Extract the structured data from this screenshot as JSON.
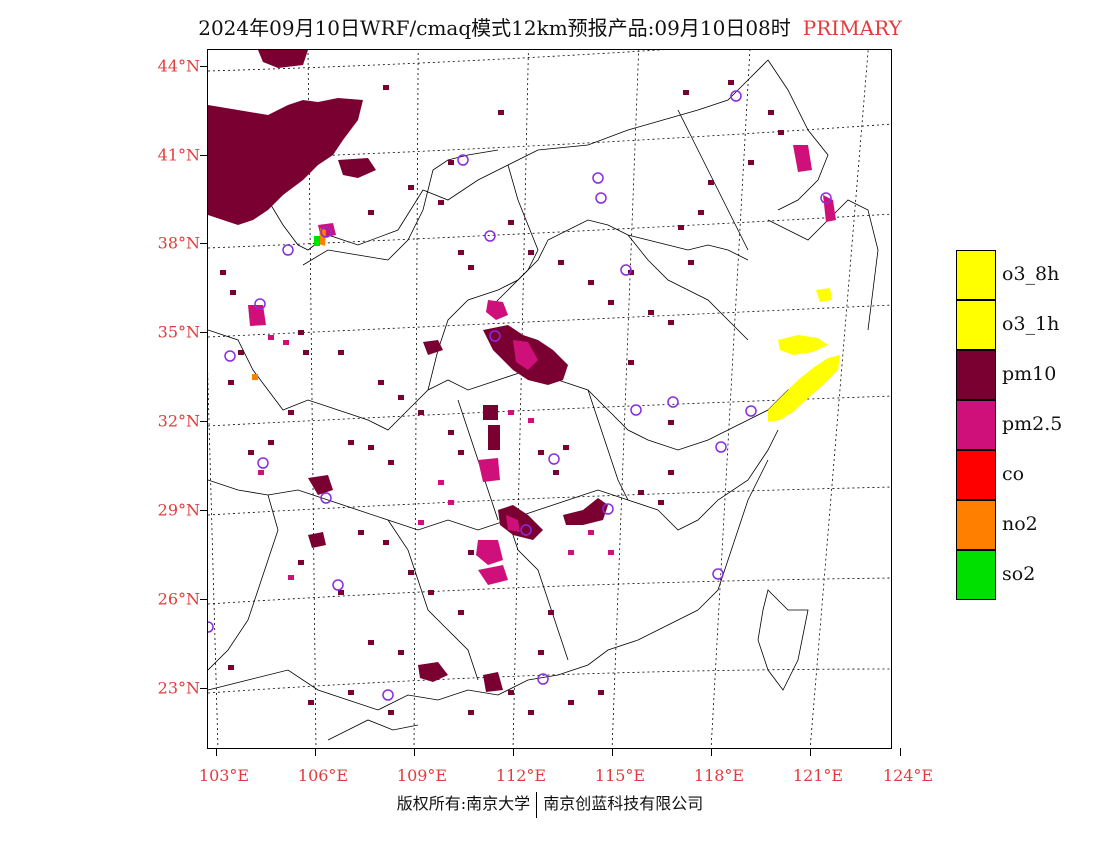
{
  "title": {
    "text": "2024年09月10日WRF/cmaq模式12km预报产品:09月10日08时",
    "tag": "PRIMARY"
  },
  "axes": {
    "lat_labels": [
      "44°N",
      "41°N",
      "38°N",
      "35°N",
      "32°N",
      "29°N",
      "26°N",
      "23°N"
    ],
    "lon_labels": [
      "103°E",
      "106°E",
      "109°E",
      "112°E",
      "115°E",
      "118°E",
      "121°E",
      "124°E"
    ]
  },
  "legend": {
    "items": [
      {
        "label": "o3_8h",
        "color": "#ffff00"
      },
      {
        "label": "o3_1h",
        "color": "#ffff00"
      },
      {
        "label": "pm10",
        "color": "#7a0032"
      },
      {
        "label": "pm2.5",
        "color": "#d0107a"
      },
      {
        "label": "co",
        "color": "#ff0000"
      },
      {
        "label": "no2",
        "color": "#ff8000"
      },
      {
        "label": "so2",
        "color": "#00e000"
      }
    ]
  },
  "footer": {
    "left": "版权所有:南京大学",
    "right": "南京创蓝科技有限公司"
  },
  "colors": {
    "label_red": "#e03c3c",
    "station_circle": "#8a2be2"
  }
}
